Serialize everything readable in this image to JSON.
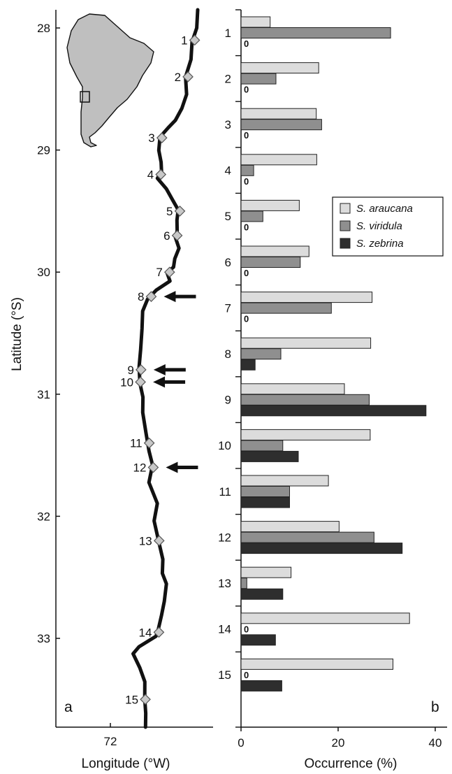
{
  "chart_data": [
    {
      "type": "map",
      "panel_label": "a",
      "xlabel": "Longitude (°W)",
      "ylabel": "Latitude (°S)",
      "x_ticks": [
        "72"
      ],
      "y_ticks": [
        "28",
        "29",
        "30",
        "31",
        "32",
        "33"
      ],
      "ylim": [
        27.85,
        33.75
      ],
      "sites": [
        {
          "label": "1",
          "lat": 28.1
        },
        {
          "label": "2",
          "lat": 28.4
        },
        {
          "label": "3",
          "lat": 28.9
        },
        {
          "label": "4",
          "lat": 29.2
        },
        {
          "label": "5",
          "lat": 29.5
        },
        {
          "label": "6",
          "lat": 29.7
        },
        {
          "label": "7",
          "lat": 30.0
        },
        {
          "label": "8",
          "lat": 30.2
        },
        {
          "label": "9",
          "lat": 30.8
        },
        {
          "label": "10",
          "lat": 30.9
        },
        {
          "label": "11",
          "lat": 31.4
        },
        {
          "label": "12",
          "lat": 31.6
        },
        {
          "label": "13",
          "lat": 32.2
        },
        {
          "label": "14",
          "lat": 32.95
        },
        {
          "label": "15",
          "lat": 33.5
        }
      ],
      "arrows_at_lat": [
        30.2,
        30.8,
        30.9,
        31.6
      ]
    },
    {
      "type": "bar",
      "orientation": "horizontal",
      "panel_label": "b",
      "xlabel": "Occurrence (%)",
      "x_ticks": [
        "0",
        "20",
        "40"
      ],
      "xlim": [
        0,
        42
      ],
      "categories": [
        "1",
        "2",
        "3",
        "4",
        "5",
        "6",
        "7",
        "8",
        "9",
        "10",
        "11",
        "12",
        "13",
        "14",
        "15"
      ],
      "series": [
        {
          "name": "S. araucana",
          "color": "#dcdcdc",
          "values": [
            6.0,
            16.0,
            15.5,
            15.6,
            12.0,
            14.0,
            27.0,
            26.7,
            21.3,
            26.6,
            18.0,
            20.2,
            10.3,
            34.7,
            31.3
          ]
        },
        {
          "name": "S. viridula",
          "color": "#8f8f8f",
          "values": [
            30.8,
            7.2,
            16.6,
            2.6,
            4.5,
            12.2,
            18.6,
            8.2,
            26.4,
            8.6,
            10.0,
            27.4,
            1.2,
            0,
            0
          ]
        },
        {
          "name": "S. zebrina",
          "color": "#2e2e2e",
          "values": [
            0,
            0,
            0,
            0,
            0,
            0,
            0,
            2.9,
            38.1,
            11.8,
            10.0,
            33.2,
            8.6,
            7.1,
            8.4
          ]
        }
      ],
      "zero_label": "0",
      "legend_position": "right-middle"
    }
  ]
}
